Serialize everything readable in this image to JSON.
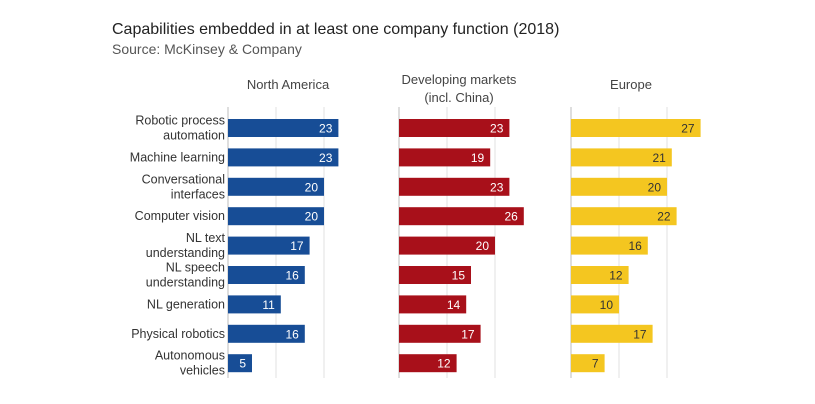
{
  "title": "Capabilities embedded in at least one company function (2018)",
  "subtitle": "Source: McKinsey & Company",
  "chart_data": {
    "type": "bar",
    "orientation": "horizontal",
    "categories": [
      [
        "Robotic process",
        "automation"
      ],
      [
        "Machine learning"
      ],
      [
        "Conversational",
        "interfaces"
      ],
      [
        "Computer vision"
      ],
      [
        "NL text",
        "understanding"
      ],
      [
        "NL speech",
        "understanding"
      ],
      [
        "NL generation"
      ],
      [
        "Physical robotics"
      ],
      [
        "Autonomous",
        "vehicles"
      ]
    ],
    "panels": [
      {
        "name": [
          "North America"
        ],
        "color": "#174d96",
        "value_color": "#ffffff",
        "values": [
          23,
          23,
          20,
          20,
          17,
          16,
          11,
          16,
          5
        ]
      },
      {
        "name": [
          "Developing markets",
          "(incl. China)"
        ],
        "color": "#a8101a",
        "value_color": "#ffffff",
        "values": [
          23,
          19,
          23,
          26,
          20,
          15,
          14,
          17,
          12
        ]
      },
      {
        "name": [
          "Europe"
        ],
        "color": "#f4c620",
        "value_color": "#333333",
        "values": [
          27,
          21,
          20,
          22,
          16,
          12,
          10,
          17,
          7
        ]
      }
    ],
    "xlim": [
      0,
      30
    ],
    "grid": true,
    "legend": "none"
  }
}
